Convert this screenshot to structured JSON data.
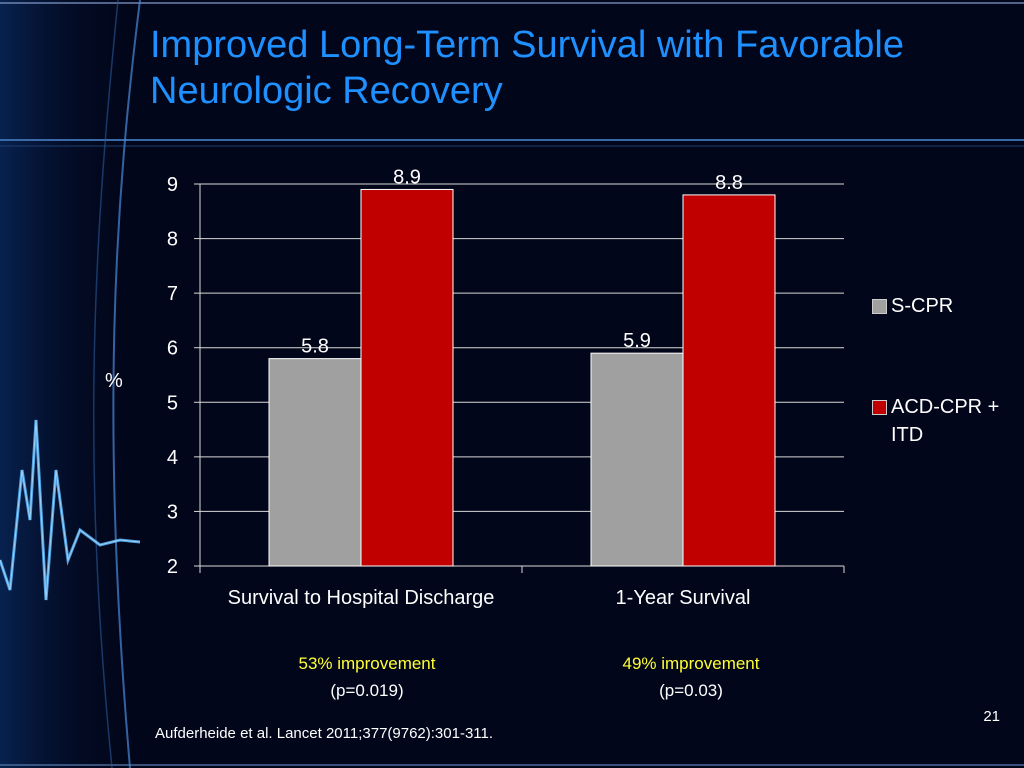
{
  "slide": {
    "title": "Improved Long-Term Survival with Favorable Neurologic Recovery",
    "citation": "Aufderheide et al. Lancet 2011;377(9762):301-311.",
    "slide_number": "21"
  },
  "chart_data": {
    "type": "bar",
    "categories": [
      "Survival to Hospital Discharge",
      "1-Year Survival"
    ],
    "series": [
      {
        "name": "S-CPR",
        "values": [
          5.8,
          5.9
        ],
        "labels": [
          "5.8",
          "5.9"
        ],
        "color": "#a0a0a0"
      },
      {
        "name": "ACD-CPR + ITD",
        "values": [
          8.9,
          8.8
        ],
        "labels": [
          "8.9",
          "8.8"
        ],
        "color": "#c00000"
      }
    ],
    "ylabel": "%",
    "ylim": [
      2,
      9
    ],
    "yticks": [
      "2",
      "3",
      "4",
      "5",
      "6",
      "7",
      "8",
      "9"
    ],
    "grid": true,
    "legend_position": "right"
  },
  "annotations": [
    {
      "highlight": "53% improvement",
      "pvalue": "(p=0.019)"
    },
    {
      "highlight": "49% improvement",
      "pvalue": "(p=0.03)"
    }
  ],
  "colors": {
    "background": "#02061a",
    "title": "#1e90ff",
    "highlight": "#ffff33"
  }
}
